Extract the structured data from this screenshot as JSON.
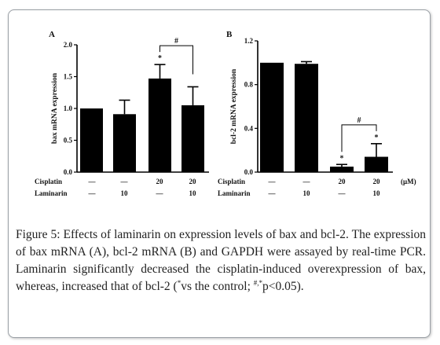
{
  "chart_data": [
    {
      "panel": "A",
      "type": "bar",
      "ylabel": "bax mRNA expression",
      "ylim": [
        0,
        2.0
      ],
      "yticks": [
        "0.0",
        "0.5",
        "1.0",
        "1.5",
        "2.0"
      ],
      "values": [
        1.0,
        0.91,
        1.47,
        1.05
      ],
      "errors": [
        0,
        0.22,
        0.22,
        0.29
      ],
      "markers": [
        "",
        "",
        "*",
        ""
      ],
      "bracket": {
        "from": 2,
        "to": 3,
        "label": "#"
      },
      "conditions": [
        {
          "label": "Cisplatin",
          "values": [
            "—",
            "—",
            "20",
            "20"
          ]
        },
        {
          "label": "Laminarin",
          "values": [
            "—",
            "10",
            "—",
            "10"
          ]
        }
      ]
    },
    {
      "panel": "B",
      "type": "bar",
      "ylabel": "bcl-2 mRNA expression",
      "ylim": [
        0,
        1.2
      ],
      "yticks": [
        "0.0",
        "0.4",
        "0.8",
        "1.2"
      ],
      "values": [
        1.0,
        0.99,
        0.05,
        0.14
      ],
      "errors": [
        0,
        0.02,
        0.02,
        0.12
      ],
      "markers": [
        "",
        "",
        "*",
        "*"
      ],
      "bracket": {
        "from": 2,
        "to": 3,
        "label": "#"
      },
      "unit": "(μM)",
      "conditions": [
        {
          "label": "Cisplatin",
          "values": [
            "—",
            "—",
            "20",
            "20"
          ]
        },
        {
          "label": "Laminarin",
          "values": [
            "—",
            "10",
            "—",
            "10"
          ]
        }
      ]
    }
  ],
  "caption": {
    "label": "Figure 5:",
    "line1": " Effects of laminarin on expression levels of bax and bcl-2. The expression of bax mRNA (A), bcl-2 mRNA (B) and GAPDH were assayed by real-time PCR. Laminarin significantly decreased the cisplatin-induced overexpression of bax, whereas, increased that of bcl-2 (",
    "sup1": "*",
    "mid": "vs the control; ",
    "sup2": "#,*",
    "end": "p<0.05)."
  }
}
